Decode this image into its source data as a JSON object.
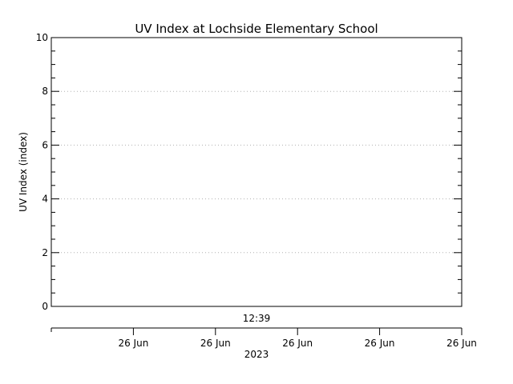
{
  "chart_data": {
    "type": "line",
    "title": "UV Index at Lochside Elementary School",
    "ylabel": "UV Index (index)",
    "xlabel": "2023",
    "ylim": [
      0,
      10
    ],
    "y_ticks": [
      0,
      2,
      4,
      6,
      8,
      10
    ],
    "y_minor_step": 0.5,
    "grid": true,
    "series": [],
    "time_marker": {
      "label": "12:39",
      "position_fraction": 0.5
    },
    "x_axis": {
      "tick_labels": [
        "26 Jun",
        "26 Jun",
        "26 Jun",
        "26 Jun",
        "26 Jun"
      ],
      "tick_positions_fraction": [
        0.2,
        0.4,
        0.6,
        0.8,
        1.0
      ],
      "year_label": "2023"
    }
  }
}
